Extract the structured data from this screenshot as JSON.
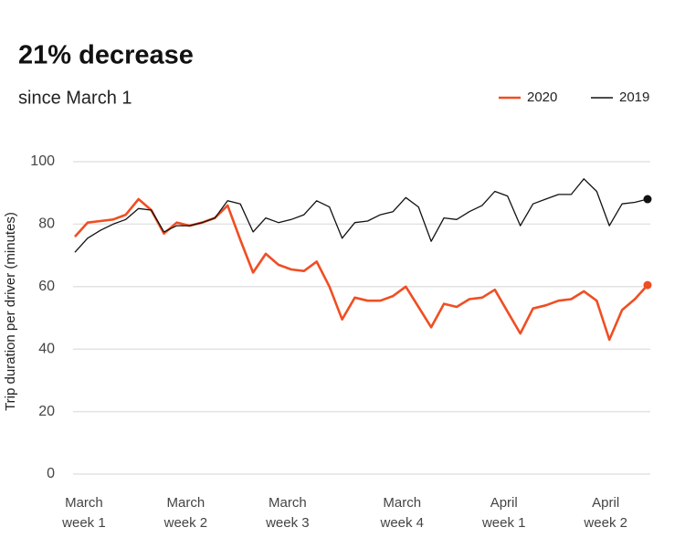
{
  "chart_data": {
    "type": "line",
    "title": "21% decrease",
    "subtitle": "since March 1",
    "y_label": "Trip duration per driver (minutes)",
    "categories": [
      null,
      "March\nweek 1",
      null,
      null,
      null,
      null,
      null,
      null,
      null,
      "March\nweek 2",
      null,
      null,
      null,
      null,
      null,
      null,
      null,
      "March\nweek 3",
      null,
      null,
      null,
      null,
      null,
      null,
      null,
      null,
      "March\nweek 4",
      null,
      null,
      null,
      null,
      null,
      null,
      null,
      "April\nweek 1",
      null,
      null,
      null,
      null,
      null,
      null,
      null,
      "April\nweek 2",
      null,
      null,
      null
    ],
    "series": [
      {
        "name": "2020",
        "color": "#f04e23",
        "values": [
          76,
          80.5,
          81,
          81.5,
          83,
          88,
          84.5,
          77,
          80.5,
          79.5,
          80.5,
          82,
          86,
          75,
          64.5,
          70.5,
          67,
          65.5,
          65,
          68,
          60,
          49.5,
          56.5,
          55.5,
          55.5,
          57,
          60,
          53.5,
          47,
          54.5,
          53.5,
          56,
          56.5,
          59,
          52,
          45,
          53,
          54,
          55.5,
          56,
          58.5,
          55.5,
          43,
          52.5,
          56,
          60.5
        ]
      },
      {
        "name": "2019",
        "color": "#111111",
        "values": [
          71,
          75.5,
          78,
          80,
          81.5,
          85,
          84.5,
          77.5,
          79.5,
          79.5,
          80.5,
          82,
          87.5,
          86.5,
          77.5,
          82,
          80.5,
          81.5,
          83,
          87.5,
          85.5,
          75.5,
          80.5,
          81,
          83,
          84,
          88.5,
          85.5,
          74.5,
          82,
          81.5,
          84,
          86,
          90.5,
          89,
          79.5,
          86.5,
          88,
          89.5,
          89.5,
          94.5,
          90.5,
          79.5,
          86.5,
          87,
          88
        ]
      }
    ],
    "ylim": [
      0,
      100
    ],
    "yticks": [
      0,
      20,
      40,
      60,
      80,
      100
    ],
    "grid": true,
    "legend": "top-right"
  }
}
